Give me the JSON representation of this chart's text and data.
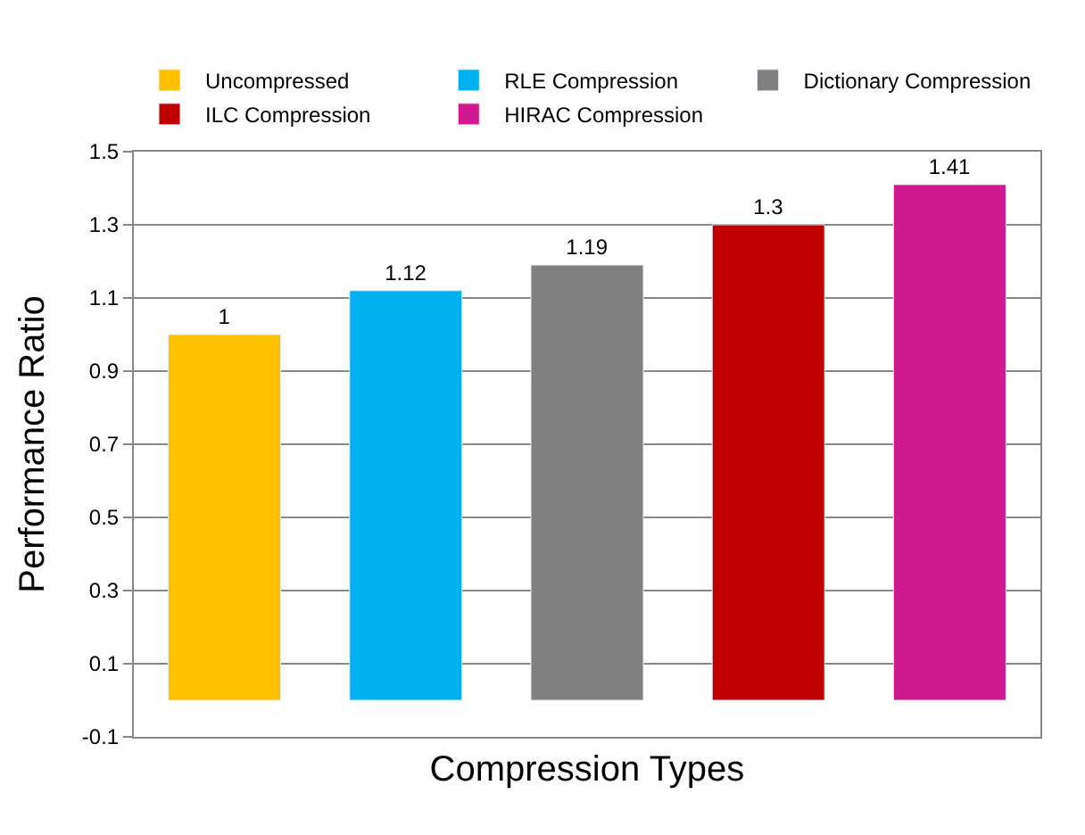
{
  "chart_data": {
    "type": "bar",
    "xlabel": "Compression Types",
    "ylabel": "Performance Ratio",
    "categories": [
      null,
      null,
      null,
      null,
      null
    ],
    "series": [
      {
        "name": "Uncompressed",
        "color": "#ffc000",
        "values": [
          1,
          null,
          null,
          null,
          null
        ]
      },
      {
        "name": "RLE Compression",
        "color": "#00b0f0",
        "values": [
          null,
          1.12,
          null,
          null,
          null
        ]
      },
      {
        "name": "Dictionary Compression",
        "color": "#808080",
        "values": [
          null,
          null,
          1.19,
          null,
          null
        ]
      },
      {
        "name": "ILC Compression",
        "color": "#c00000",
        "values": [
          null,
          null,
          null,
          1.3,
          null
        ]
      },
      {
        "name": "HIRAC Compression",
        "color": "#d0198f",
        "values": [
          null,
          null,
          null,
          null,
          1.41
        ]
      }
    ],
    "ylim": [
      -0.1,
      1.5
    ],
    "yticks": [
      -0.1,
      0.1,
      0.3,
      0.5,
      0.7,
      0.9,
      1.1,
      1.3,
      1.5
    ],
    "grid": "y",
    "legend": "top",
    "data_labels": true,
    "tick_labels": "y"
  }
}
